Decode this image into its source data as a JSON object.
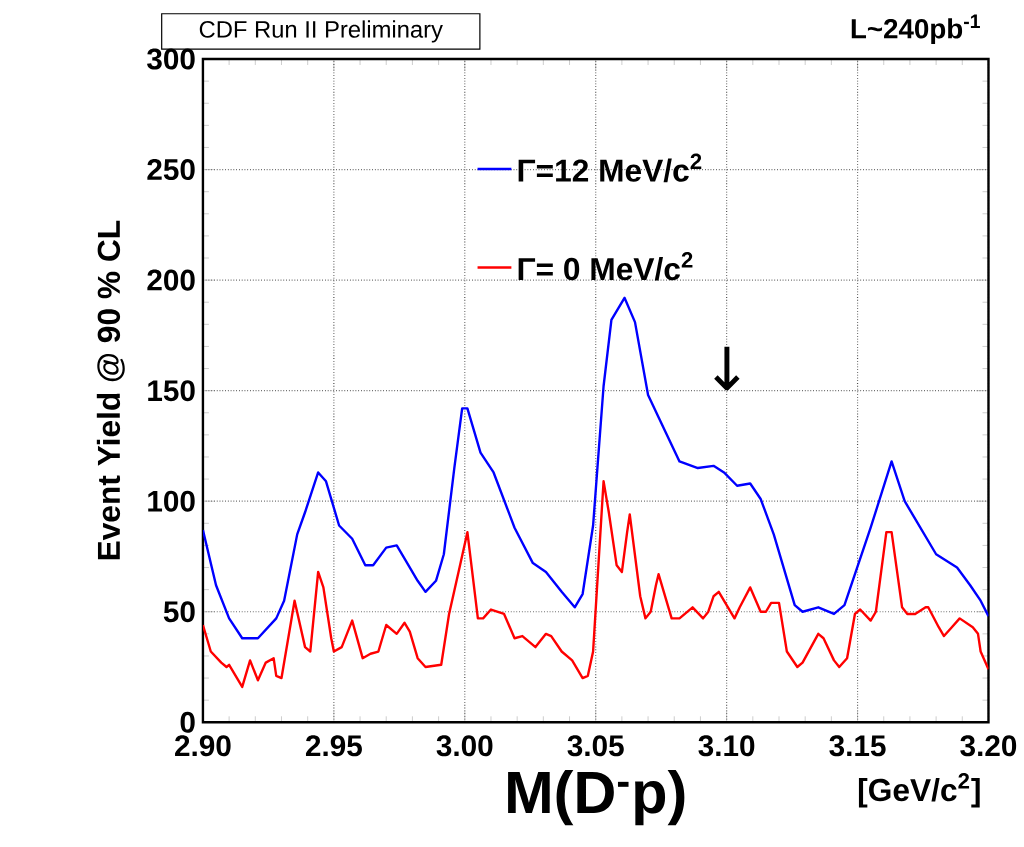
{
  "chart_data": {
    "type": "line",
    "title": "CDF Run II Preliminary",
    "ylabel": "Event Yield @ 90 % CL",
    "xlabel": "M(D$^{-}$p)",
    "annotations": [
      "L~240pb$^{-1}$",
      "[GeV/c$^{2}$]",
      "↓"
    ],
    "xlim": [
      2.9,
      3.2
    ],
    "ylim": [
      0,
      300
    ],
    "xticks": [
      {
        "value": 2.9,
        "label": "2.90"
      },
      2.95,
      {
        "value": 3.0,
        "label": "3.00"
      },
      3.05,
      {
        "value": 3.1,
        "label": "3.10"
      },
      3.15,
      {
        "value": 3.2,
        "label": "3.20"
      }
    ],
    "yticks": [
      0,
      50,
      100,
      150,
      200,
      250,
      300
    ],
    "grid": true,
    "legend": "top",
    "marker": "none",
    "line_style": "solid",
    "series": [
      {
        "name": "Γ=12 MeV/c$^{2}$",
        "color": "#0000ff",
        "x": [
          2.9,
          2.905,
          2.91,
          2.915,
          2.921,
          2.928,
          2.931,
          2.936,
          2.939,
          2.944,
          2.947,
          2.952,
          2.957,
          2.962,
          2.965,
          2.97,
          2.974,
          2.977,
          2.982,
          2.985,
          2.989,
          2.992,
          2.996,
          2.999,
          3.001,
          3.006,
          3.011,
          3.019,
          3.026,
          3.031,
          3.037,
          3.042,
          3.045,
          3.049,
          3.053,
          3.056,
          3.061,
          3.065,
          3.07,
          3.074,
          3.082,
          3.089,
          3.095,
          3.099,
          3.104,
          3.109,
          3.113,
          3.118,
          3.126,
          3.129,
          3.135,
          3.141,
          3.145,
          3.155,
          3.163,
          3.168,
          3.172,
          3.18,
          3.188,
          3.193,
          3.197,
          3.2
        ],
        "values": [
          87,
          62,
          47,
          38,
          38,
          47,
          55,
          85,
          95,
          113,
          109,
          89,
          83,
          71,
          71,
          79,
          80,
          74,
          64,
          59,
          64,
          76,
          115,
          142,
          142,
          122,
          113,
          88,
          72,
          68,
          59,
          52,
          58,
          89,
          152,
          182,
          192,
          181,
          148,
          138,
          118,
          115,
          116,
          113,
          107,
          108,
          101,
          85,
          53,
          50,
          52,
          49,
          53,
          88,
          118,
          100,
          92,
          76,
          70,
          62,
          55,
          48
        ]
      },
      {
        "name": "Γ= 0 MeV/c$^{2}$",
        "color": "#ff0000",
        "x": [
          2.9,
          2.903,
          2.907,
          2.909,
          2.91,
          2.915,
          2.918,
          2.921,
          2.924,
          2.927,
          2.928,
          2.93,
          2.935,
          2.939,
          2.941,
          2.944,
          2.946,
          2.949,
          2.95,
          2.953,
          2.957,
          2.961,
          2.964,
          2.967,
          2.97,
          2.974,
          2.977,
          2.979,
          2.982,
          2.985,
          2.991,
          2.994,
          2.998,
          3.001,
          3.005,
          3.007,
          3.01,
          3.015,
          3.019,
          3.022,
          3.027,
          3.031,
          3.033,
          3.037,
          3.041,
          3.045,
          3.047,
          3.049,
          3.053,
          3.055,
          3.058,
          3.06,
          3.062,
          3.063,
          3.067,
          3.069,
          3.071,
          3.073,
          3.074,
          3.079,
          3.082,
          3.087,
          3.091,
          3.093,
          3.095,
          3.097,
          3.103,
          3.105,
          3.109,
          3.113,
          3.115,
          3.117,
          3.12,
          3.123,
          3.127,
          3.129,
          3.135,
          3.137,
          3.141,
          3.143,
          3.146,
          3.149,
          3.151,
          3.155,
          3.157,
          3.161,
          3.163,
          3.167,
          3.169,
          3.172,
          3.176,
          3.177,
          3.181,
          3.183,
          3.186,
          3.189,
          3.194,
          3.196,
          3.197,
          3.2
        ],
        "values": [
          44,
          32,
          27,
          25,
          26,
          16,
          28,
          19,
          27,
          29,
          21,
          20,
          55,
          34,
          32,
          68,
          61,
          38,
          32,
          34,
          46,
          29,
          31,
          32,
          44,
          40,
          45,
          41,
          29,
          25,
          26,
          49,
          70,
          86,
          47,
          47,
          51,
          49,
          38,
          39,
          34,
          40,
          39,
          32,
          28,
          20,
          21,
          32,
          109,
          95,
          71,
          68,
          86,
          94,
          57,
          47,
          50,
          62,
          67,
          47,
          47,
          52,
          47,
          50,
          57,
          59,
          47,
          52,
          61,
          50,
          50,
          54,
          54,
          32,
          25,
          27,
          40,
          38,
          28,
          25,
          29,
          49,
          51,
          46,
          50,
          86,
          86,
          52,
          49,
          49,
          52,
          52,
          43,
          39,
          43,
          47,
          43,
          40,
          32,
          24
        ]
      }
    ]
  }
}
